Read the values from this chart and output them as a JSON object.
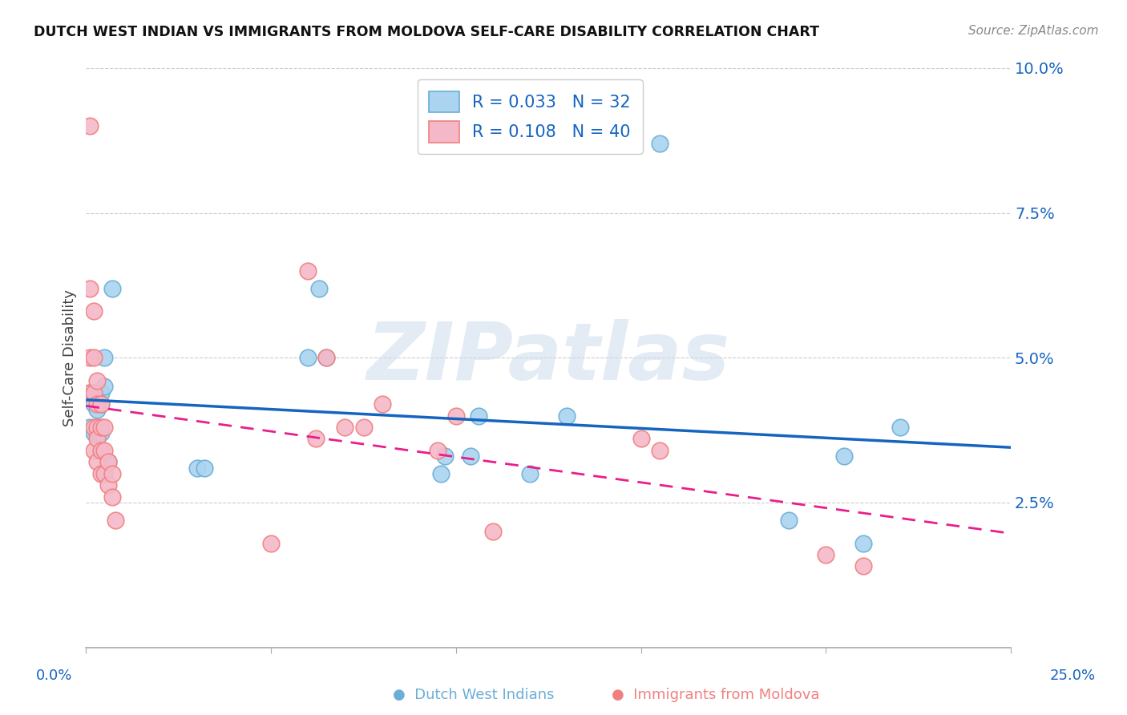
{
  "title": "DUTCH WEST INDIAN VS IMMIGRANTS FROM MOLDOVA SELF-CARE DISABILITY CORRELATION CHART",
  "source": "Source: ZipAtlas.com",
  "ylabel": "Self-Care Disability",
  "y_ticks": [
    0.0,
    0.025,
    0.05,
    0.075,
    0.1
  ],
  "y_tick_labels": [
    "",
    "2.5%",
    "5.0%",
    "7.5%",
    "10.0%"
  ],
  "x_range": [
    0.0,
    0.25
  ],
  "y_range": [
    0.0,
    0.1
  ],
  "legend_entry1": {
    "R": "0.033",
    "N": "32",
    "label": "Dutch West Indians"
  },
  "legend_entry2": {
    "R": "0.108",
    "N": "40",
    "label": "Immigrants from Moldova"
  },
  "blue_scatter_x": [
    0.001,
    0.001,
    0.002,
    0.002,
    0.002,
    0.003,
    0.003,
    0.003,
    0.003,
    0.004,
    0.004,
    0.004,
    0.005,
    0.005,
    0.006,
    0.007,
    0.03,
    0.032,
    0.06,
    0.063,
    0.065,
    0.096,
    0.097,
    0.104,
    0.106,
    0.12,
    0.13,
    0.155,
    0.19,
    0.205,
    0.21,
    0.22
  ],
  "blue_scatter_y": [
    0.044,
    0.038,
    0.044,
    0.042,
    0.037,
    0.043,
    0.041,
    0.038,
    0.037,
    0.044,
    0.042,
    0.037,
    0.05,
    0.045,
    0.032,
    0.062,
    0.031,
    0.031,
    0.05,
    0.062,
    0.05,
    0.03,
    0.033,
    0.033,
    0.04,
    0.03,
    0.04,
    0.087,
    0.022,
    0.033,
    0.018,
    0.038
  ],
  "pink_scatter_x": [
    0.001,
    0.001,
    0.001,
    0.001,
    0.002,
    0.002,
    0.002,
    0.002,
    0.002,
    0.003,
    0.003,
    0.003,
    0.003,
    0.003,
    0.004,
    0.004,
    0.004,
    0.004,
    0.005,
    0.005,
    0.005,
    0.006,
    0.006,
    0.007,
    0.007,
    0.008,
    0.05,
    0.06,
    0.062,
    0.065,
    0.07,
    0.075,
    0.08,
    0.095,
    0.1,
    0.11,
    0.15,
    0.155,
    0.2,
    0.21
  ],
  "pink_scatter_y": [
    0.09,
    0.062,
    0.05,
    0.044,
    0.058,
    0.05,
    0.044,
    0.038,
    0.034,
    0.046,
    0.042,
    0.038,
    0.036,
    0.032,
    0.042,
    0.038,
    0.034,
    0.03,
    0.038,
    0.034,
    0.03,
    0.032,
    0.028,
    0.03,
    0.026,
    0.022,
    0.018,
    0.065,
    0.036,
    0.05,
    0.038,
    0.038,
    0.042,
    0.034,
    0.04,
    0.02,
    0.036,
    0.034,
    0.016,
    0.014
  ],
  "blue_dot_color": "#aad4f0",
  "blue_edge_color": "#6baed6",
  "pink_dot_color": "#f5b8c8",
  "pink_edge_color": "#f08080",
  "blue_line_color": "#1565c0",
  "pink_line_color": "#e91e8c",
  "grid_color": "#cccccc",
  "watermark": "ZIPatlas",
  "background_color": "#ffffff"
}
